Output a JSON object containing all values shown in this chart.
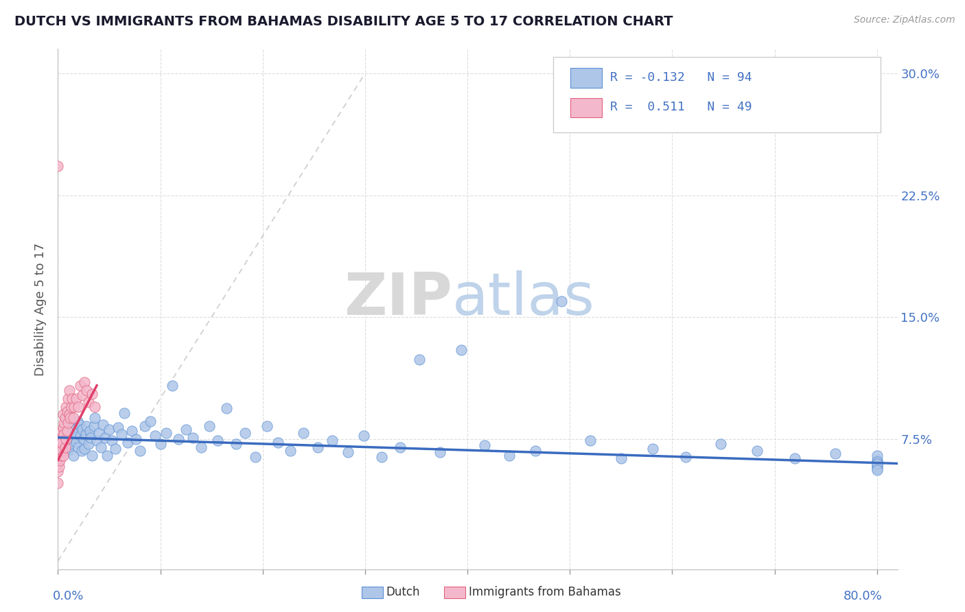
{
  "title": "DUTCH VS IMMIGRANTS FROM BAHAMAS DISABILITY AGE 5 TO 17 CORRELATION CHART",
  "source": "Source: ZipAtlas.com",
  "ylabel": "Disability Age 5 to 17",
  "legend_dutch_R": "-0.132",
  "legend_dutch_N": "94",
  "legend_bahamas_R": "0.511",
  "legend_bahamas_N": "49",
  "watermark_zip": "ZIP",
  "watermark_atlas": "atlas",
  "dutch_color": "#aec6e8",
  "dutch_edge_color": "#5b8fd4",
  "bahamas_color": "#f4b8cc",
  "bahamas_edge_color": "#e0607a",
  "dutch_line_color": "#3a6bbf",
  "bahamas_line_color": "#e0406a",
  "diag_line_color": "#cccccc",
  "axis_label_color": "#4472c4",
  "background_color": "#ffffff",
  "grid_color": "#dddddd",
  "xlim": [
    0.0,
    0.82
  ],
  "ylim": [
    -0.005,
    0.315
  ],
  "yticks": [
    0.075,
    0.15,
    0.225,
    0.3
  ],
  "ytick_labels": [
    "7.5%",
    "15.0%",
    "22.5%",
    "30.0%"
  ],
  "dutch_x": [
    0.003,
    0.005,
    0.007,
    0.009,
    0.01,
    0.011,
    0.012,
    0.013,
    0.014,
    0.015,
    0.016,
    0.017,
    0.018,
    0.019,
    0.02,
    0.021,
    0.022,
    0.023,
    0.024,
    0.025,
    0.026,
    0.027,
    0.028,
    0.03,
    0.031,
    0.032,
    0.033,
    0.035,
    0.036,
    0.038,
    0.04,
    0.042,
    0.044,
    0.046,
    0.048,
    0.05,
    0.053,
    0.056,
    0.059,
    0.062,
    0.065,
    0.068,
    0.072,
    0.076,
    0.08,
    0.085,
    0.09,
    0.095,
    0.1,
    0.106,
    0.112,
    0.118,
    0.125,
    0.132,
    0.14,
    0.148,
    0.156,
    0.165,
    0.174,
    0.183,
    0.193,
    0.204,
    0.215,
    0.227,
    0.24,
    0.254,
    0.268,
    0.283,
    0.299,
    0.316,
    0.334,
    0.353,
    0.373,
    0.394,
    0.417,
    0.441,
    0.466,
    0.492,
    0.52,
    0.55,
    0.581,
    0.613,
    0.647,
    0.683,
    0.72,
    0.759,
    0.8,
    0.8,
    0.8,
    0.8,
    0.8,
    0.8,
    0.8,
    0.8
  ],
  "dutch_y": [
    0.075,
    0.07,
    0.082,
    0.078,
    0.068,
    0.085,
    0.072,
    0.08,
    0.076,
    0.065,
    0.083,
    0.079,
    0.073,
    0.086,
    0.07,
    0.084,
    0.077,
    0.068,
    0.081,
    0.075,
    0.069,
    0.078,
    0.083,
    0.072,
    0.08,
    0.076,
    0.065,
    0.083,
    0.088,
    0.074,
    0.079,
    0.07,
    0.084,
    0.076,
    0.065,
    0.081,
    0.074,
    0.069,
    0.082,
    0.078,
    0.091,
    0.073,
    0.08,
    0.075,
    0.068,
    0.083,
    0.086,
    0.077,
    0.072,
    0.079,
    0.108,
    0.075,
    0.081,
    0.076,
    0.07,
    0.083,
    0.074,
    0.094,
    0.072,
    0.079,
    0.064,
    0.083,
    0.073,
    0.068,
    0.079,
    0.07,
    0.074,
    0.067,
    0.077,
    0.064,
    0.07,
    0.124,
    0.067,
    0.13,
    0.071,
    0.065,
    0.068,
    0.16,
    0.074,
    0.063,
    0.069,
    0.064,
    0.072,
    0.068,
    0.063,
    0.066,
    0.059,
    0.062,
    0.058,
    0.065,
    0.061,
    0.057,
    0.06,
    0.056
  ],
  "bahamas_x": [
    0.0,
    0.0,
    0.0,
    0.0,
    0.0,
    0.0,
    0.001,
    0.001,
    0.001,
    0.001,
    0.002,
    0.002,
    0.002,
    0.002,
    0.003,
    0.003,
    0.003,
    0.004,
    0.004,
    0.004,
    0.005,
    0.005,
    0.005,
    0.006,
    0.006,
    0.007,
    0.007,
    0.008,
    0.008,
    0.009,
    0.009,
    0.01,
    0.01,
    0.011,
    0.011,
    0.012,
    0.013,
    0.014,
    0.015,
    0.016,
    0.018,
    0.02,
    0.022,
    0.024,
    0.026,
    0.028,
    0.03,
    0.033,
    0.036
  ],
  "bahamas_y": [
    0.243,
    0.055,
    0.06,
    0.065,
    0.07,
    0.048,
    0.058,
    0.063,
    0.068,
    0.073,
    0.062,
    0.067,
    0.072,
    0.078,
    0.065,
    0.07,
    0.075,
    0.068,
    0.073,
    0.08,
    0.065,
    0.082,
    0.09,
    0.078,
    0.085,
    0.07,
    0.088,
    0.075,
    0.095,
    0.08,
    0.092,
    0.085,
    0.1,
    0.09,
    0.105,
    0.088,
    0.095,
    0.1,
    0.088,
    0.095,
    0.1,
    0.095,
    0.108,
    0.102,
    0.11,
    0.105,
    0.098,
    0.103,
    0.095
  ]
}
